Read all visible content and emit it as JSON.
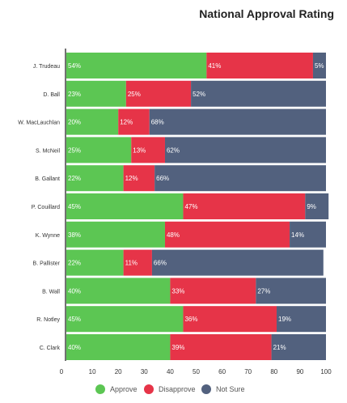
{
  "colors": {
    "approve": "#5CC653",
    "disapprove": "#E63448",
    "not_sure": "#52617E",
    "bar_label": "#ffffff",
    "axis_text": "#333333"
  },
  "chart_data": {
    "type": "bar",
    "orientation": "horizontal",
    "stacked": true,
    "title": "National Approval Rating",
    "categories": [
      "J. Trudeau",
      "D. Ball",
      "W. MacLauchlan",
      "S. McNeil",
      "B. Gallant",
      "P. Couillard",
      "K. Wynne",
      "B. Pallister",
      "B. Wall",
      "R. Notley",
      "C. Clark"
    ],
    "series": [
      {
        "name": "Approve",
        "values": [
          54,
          23,
          20,
          25,
          22,
          45,
          38,
          22,
          40,
          45,
          40
        ],
        "labels": [
          "54%",
          "23%",
          "20%",
          "25%",
          "22%",
          "45%",
          "38%",
          "22%",
          "40%",
          "45%",
          "40%"
        ]
      },
      {
        "name": "Disapprove",
        "values": [
          41,
          25,
          12,
          13,
          12,
          47,
          48,
          11,
          33,
          36,
          39
        ],
        "labels": [
          "41%",
          "25%",
          "12%",
          "13%",
          "12%",
          "47%",
          "48%",
          "11%",
          "33%",
          "36%",
          "39%"
        ]
      },
      {
        "name": "Not Sure",
        "values": [
          5,
          52,
          68,
          62,
          66,
          9,
          14,
          66,
          27,
          19,
          21
        ],
        "labels": [
          "5%",
          "52%",
          "68%",
          "62%",
          "66%",
          "9%",
          "14%",
          "66%",
          "27%",
          "19%",
          "21%"
        ]
      }
    ],
    "x_ticks": [
      "0",
      "10",
      "20",
      "30",
      "40",
      "50",
      "60",
      "70",
      "80",
      "90",
      "100"
    ],
    "xlim": [
      0,
      100
    ],
    "grid": false,
    "legend_position": "bottom"
  }
}
